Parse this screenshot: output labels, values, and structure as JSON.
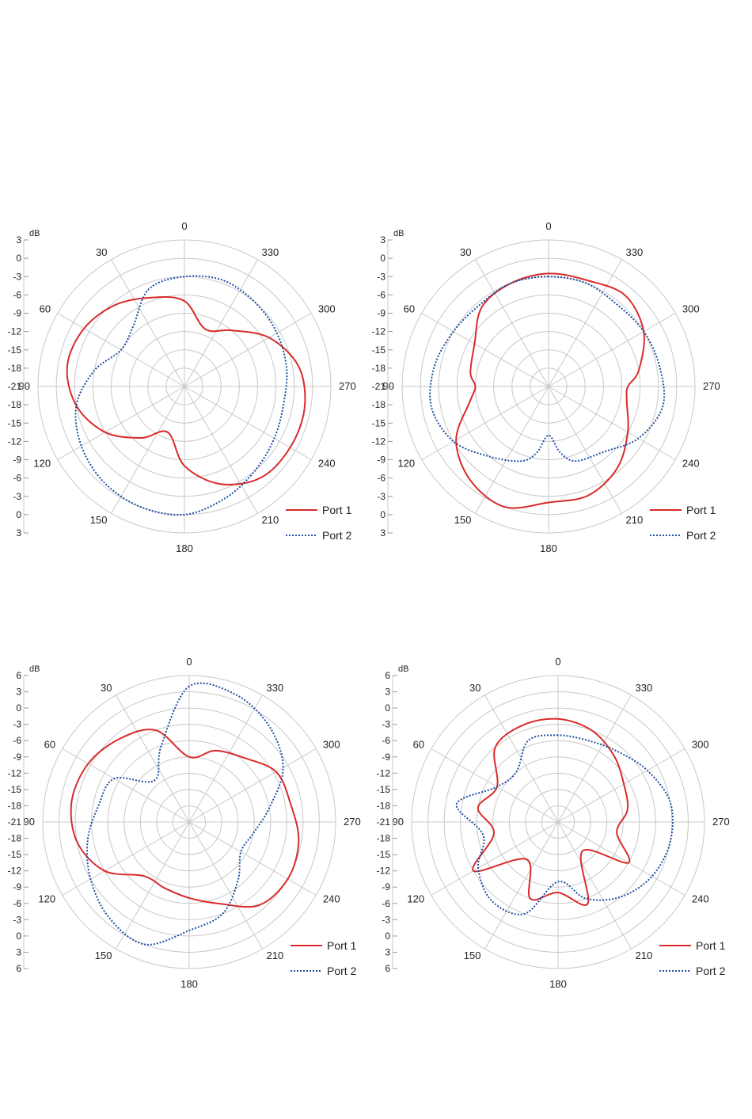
{
  "colors": {
    "port1": "#d92b2b",
    "port2": "#1f4fa3",
    "grid": "#c8c8c8",
    "text": "#222222"
  },
  "chart_data": [
    {
      "type": "polar-line",
      "unit_label": "dB",
      "radial_ticks": [
        "3",
        "0",
        "-3",
        "-6",
        "-9",
        "-12",
        "-15",
        "-18",
        "-21"
      ],
      "rlim": [
        -21,
        3
      ],
      "angle_labels": [
        "0",
        "30",
        "60",
        "90",
        "120",
        "150",
        "180",
        "210",
        "240",
        "270",
        "300",
        "330"
      ],
      "angle_direction": "counterclockwise",
      "legend_position": "bottom-right",
      "series": [
        {
          "name": "Port 1",
          "style": "solid",
          "color": "#d92b2b",
          "angles": [
            0,
            20,
            40,
            60,
            80,
            100,
            120,
            140,
            160,
            180,
            200,
            220,
            240,
            260,
            280,
            300,
            320,
            340
          ],
          "values": [
            -7,
            -5.5,
            -3.5,
            -2,
            -1.5,
            -3,
            -6,
            -10,
            -13,
            -8,
            -4,
            -1.5,
            -1,
            -1,
            -2,
            -5,
            -9,
            -11
          ]
        },
        {
          "name": "Port 2",
          "style": "dotted",
          "color": "#1f4fa3",
          "angles": [
            0,
            20,
            40,
            60,
            80,
            100,
            120,
            140,
            160,
            180,
            200,
            220,
            240,
            260,
            280,
            300,
            320,
            340
          ],
          "values": [
            -3,
            -4,
            -8,
            -9,
            -6,
            -3,
            -1.5,
            -0.5,
            0,
            0,
            -1.5,
            -3,
            -4,
            -4.5,
            -4,
            -3.5,
            -3,
            -2.5
          ]
        }
      ]
    },
    {
      "type": "polar-line",
      "unit_label": "dB",
      "radial_ticks": [
        "3",
        "0",
        "-3",
        "-6",
        "-9",
        "-12",
        "-15",
        "-18",
        "-21"
      ],
      "rlim": [
        -21,
        3
      ],
      "angle_labels": [
        "0",
        "30",
        "60",
        "90",
        "120",
        "150",
        "180",
        "210",
        "240",
        "270",
        "300",
        "330"
      ],
      "angle_direction": "counterclockwise",
      "legend_position": "bottom-right",
      "series": [
        {
          "name": "Port 1",
          "style": "solid",
          "color": "#d92b2b",
          "angles": [
            0,
            20,
            40,
            60,
            80,
            90,
            100,
            120,
            140,
            160,
            180,
            200,
            220,
            240,
            260,
            270,
            280,
            300,
            320,
            340
          ],
          "values": [
            -2.5,
            -3,
            -4,
            -7,
            -8,
            -9,
            -8,
            -3.5,
            -1,
            0,
            -2,
            -2,
            -3.5,
            -6,
            -8,
            -8,
            -6,
            -3,
            -1.5,
            -2.5
          ]
        },
        {
          "name": "Port 2",
          "style": "dotted",
          "color": "#1f4fa3",
          "angles": [
            0,
            20,
            40,
            60,
            80,
            100,
            120,
            140,
            160,
            170,
            180,
            190,
            200,
            220,
            240,
            260,
            280,
            300,
            320,
            340
          ],
          "values": [
            -3,
            -3,
            -3.5,
            -3,
            -2,
            -1.5,
            -3,
            -6,
            -8,
            -10,
            -13,
            -10,
            -8,
            -7,
            -4,
            -2,
            -2.5,
            -3,
            -3.5,
            -3
          ]
        }
      ]
    },
    {
      "type": "polar-line",
      "unit_label": "dB",
      "radial_ticks": [
        "6",
        "3",
        "0",
        "-3",
        "-6",
        "-9",
        "-12",
        "-15",
        "-18",
        "-21"
      ],
      "rlim": [
        -21,
        6
      ],
      "angle_labels": [
        "0",
        "30",
        "60",
        "90",
        "120",
        "150",
        "180",
        "210",
        "240",
        "270",
        "300",
        "330"
      ],
      "angle_direction": "counterclockwise",
      "legend_position": "bottom-right",
      "series": [
        {
          "name": "Port 1",
          "style": "solid",
          "color": "#d92b2b",
          "angles": [
            0,
            20,
            40,
            60,
            80,
            100,
            120,
            140,
            160,
            180,
            200,
            220,
            240,
            260,
            280,
            300,
            320,
            340
          ],
          "values": [
            -9,
            -3,
            -1,
            0.5,
            1,
            0,
            -3,
            -8,
            -8,
            -7,
            -5,
            -1,
            0,
            -0.5,
            -2,
            -2.5,
            -5.5,
            -7
          ]
        },
        {
          "name": "Port 2",
          "style": "dotted",
          "color": "#1f4fa3",
          "angles": [
            0,
            20,
            40,
            60,
            80,
            100,
            120,
            140,
            160,
            180,
            200,
            220,
            240,
            260,
            280,
            300,
            320,
            340
          ],
          "values": [
            4,
            -6,
            -11,
            -5,
            -4,
            -2,
            0,
            2,
            3,
            -1,
            -3,
            -7,
            -10,
            -9,
            -6,
            -1,
            2,
            4
          ]
        }
      ]
    },
    {
      "type": "polar-line",
      "unit_label": "dB",
      "radial_ticks": [
        "6",
        "3",
        "0",
        "-3",
        "-6",
        "-9",
        "-12",
        "-15",
        "-18",
        "-21"
      ],
      "rlim": [
        -21,
        6
      ],
      "angle_labels": [
        "0",
        "30",
        "60",
        "90",
        "120",
        "150",
        "180",
        "210",
        "240",
        "270",
        "300",
        "330"
      ],
      "angle_direction": "counterclockwise",
      "legend_position": "bottom-right",
      "series": [
        {
          "name": "Port 1",
          "style": "solid",
          "color": "#d92b2b",
          "angles": [
            0,
            20,
            40,
            60,
            80,
            100,
            120,
            140,
            160,
            180,
            200,
            220,
            240,
            260,
            280,
            300,
            320,
            340
          ],
          "values": [
            -2,
            -2,
            -3,
            -8,
            -6,
            -9,
            -3,
            -12,
            -6,
            -8,
            -5,
            -14,
            -6,
            -10,
            -8,
            -7,
            -5,
            -3
          ]
        },
        {
          "name": "Port 2",
          "style": "dotted",
          "color": "#1f4fa3",
          "angles": [
            0,
            20,
            40,
            60,
            80,
            100,
            120,
            140,
            160,
            180,
            200,
            220,
            240,
            260,
            280,
            300,
            320,
            340
          ],
          "values": [
            -5,
            -5,
            -9,
            -8,
            -2,
            -7,
            -4,
            -2,
            -3,
            -10,
            -6,
            -3,
            -1,
            0,
            0,
            -2,
            -4,
            -5
          ]
        }
      ]
    }
  ]
}
